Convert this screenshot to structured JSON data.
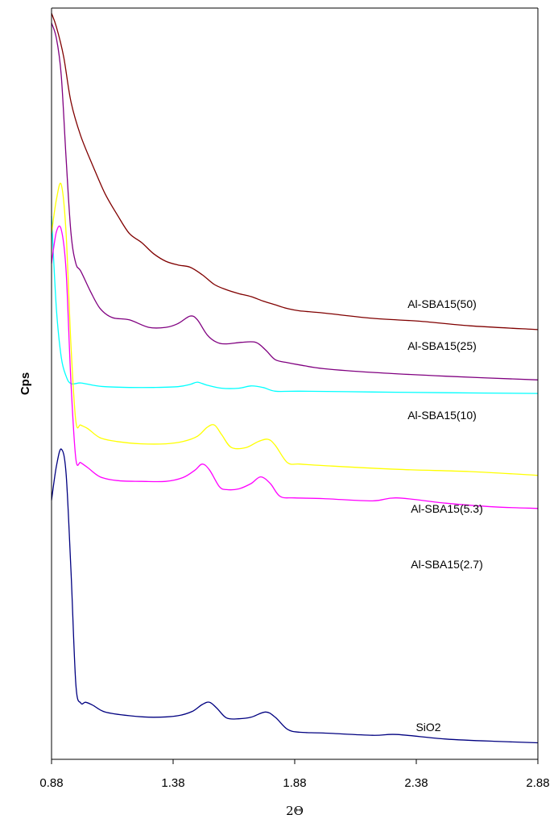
{
  "chart_data": {
    "type": "line",
    "xlabel": "2Θ",
    "ylabel": "Cps",
    "xlim": [
      0.88,
      2.88
    ],
    "xticks": [
      "0.88",
      "1.38",
      "1.88",
      "2.38",
      "2.88"
    ],
    "ylim": [
      0,
      100
    ],
    "grid": false,
    "legend": "inline labels at right",
    "series": [
      {
        "name": "Al-SBA15(50)",
        "color": "#800000",
        "points": [
          [
            0.88,
            99.3
          ],
          [
            0.9,
            97.5
          ],
          [
            0.93,
            93.5
          ],
          [
            0.96,
            87.5
          ],
          [
            1.0,
            83
          ],
          [
            1.05,
            79
          ],
          [
            1.1,
            75.3
          ],
          [
            1.15,
            72.5
          ],
          [
            1.2,
            70
          ],
          [
            1.25,
            68.8
          ],
          [
            1.3,
            67.3
          ],
          [
            1.35,
            66.3
          ],
          [
            1.4,
            65.8
          ],
          [
            1.45,
            65.5
          ],
          [
            1.5,
            64.5
          ],
          [
            1.55,
            63.2
          ],
          [
            1.6,
            62.5
          ],
          [
            1.65,
            62
          ],
          [
            1.7,
            61.6
          ],
          [
            1.75,
            61
          ],
          [
            1.8,
            60.5
          ],
          [
            1.85,
            60
          ],
          [
            1.9,
            59.7
          ],
          [
            2.0,
            59.4
          ],
          [
            2.2,
            58.7
          ],
          [
            2.4,
            58.3
          ],
          [
            2.6,
            57.7
          ],
          [
            2.88,
            57.2
          ]
        ]
      },
      {
        "name": "Al-SBA15(25)",
        "color": "#800080",
        "points": [
          [
            0.88,
            98
          ],
          [
            0.9,
            96
          ],
          [
            0.92,
            91
          ],
          [
            0.94,
            80
          ],
          [
            0.96,
            70
          ],
          [
            0.98,
            66
          ],
          [
            1.0,
            65
          ],
          [
            1.04,
            62.3
          ],
          [
            1.08,
            60
          ],
          [
            1.13,
            58.8
          ],
          [
            1.2,
            58.5
          ],
          [
            1.28,
            57.5
          ],
          [
            1.35,
            57.5
          ],
          [
            1.4,
            58
          ],
          [
            1.45,
            59
          ],
          [
            1.48,
            58.5
          ],
          [
            1.52,
            56.5
          ],
          [
            1.56,
            55.5
          ],
          [
            1.6,
            55.3
          ],
          [
            1.66,
            55.5
          ],
          [
            1.72,
            55.5
          ],
          [
            1.76,
            54.5
          ],
          [
            1.8,
            53.2
          ],
          [
            1.85,
            52.8
          ],
          [
            1.9,
            52.5
          ],
          [
            2.0,
            52
          ],
          [
            2.2,
            51.5
          ],
          [
            2.5,
            51
          ],
          [
            2.88,
            50.5
          ]
        ]
      },
      {
        "name": "Al-SBA15(10)",
        "color": "#00ffff",
        "points": [
          [
            0.88,
            72.3
          ],
          [
            0.9,
            60
          ],
          [
            0.92,
            53.5
          ],
          [
            0.94,
            51
          ],
          [
            0.96,
            50
          ],
          [
            1.0,
            50.1
          ],
          [
            1.05,
            49.8
          ],
          [
            1.1,
            49.6
          ],
          [
            1.2,
            49.5
          ],
          [
            1.3,
            49.5
          ],
          [
            1.4,
            49.6
          ],
          [
            1.45,
            49.9
          ],
          [
            1.48,
            50.2
          ],
          [
            1.52,
            49.8
          ],
          [
            1.58,
            49.4
          ],
          [
            1.65,
            49.4
          ],
          [
            1.7,
            49.7
          ],
          [
            1.75,
            49.5
          ],
          [
            1.8,
            49
          ],
          [
            1.9,
            49
          ],
          [
            2.2,
            48.9
          ],
          [
            2.5,
            48.8
          ],
          [
            2.88,
            48.7
          ]
        ]
      },
      {
        "name": "Al-SBA15(5.3)",
        "color": "#ffff00",
        "points": [
          [
            0.88,
            70
          ],
          [
            0.9,
            74.5
          ],
          [
            0.92,
            76.5
          ],
          [
            0.94,
            70
          ],
          [
            0.96,
            55
          ],
          [
            0.98,
            45
          ],
          [
            1.0,
            44.5
          ],
          [
            1.03,
            44
          ],
          [
            1.08,
            42.8
          ],
          [
            1.15,
            42.3
          ],
          [
            1.25,
            42
          ],
          [
            1.35,
            42
          ],
          [
            1.42,
            42.3
          ],
          [
            1.48,
            43
          ],
          [
            1.52,
            44.2
          ],
          [
            1.55,
            44.5
          ],
          [
            1.58,
            43.2
          ],
          [
            1.62,
            41.5
          ],
          [
            1.68,
            41.5
          ],
          [
            1.73,
            42.3
          ],
          [
            1.77,
            42.6
          ],
          [
            1.8,
            41.8
          ],
          [
            1.85,
            39.5
          ],
          [
            1.9,
            39.3
          ],
          [
            2.0,
            39.1
          ],
          [
            2.3,
            38.6
          ],
          [
            2.6,
            38.3
          ],
          [
            2.88,
            37.8
          ]
        ]
      },
      {
        "name": "Al-SBA15(2.7)",
        "color": "#ff00ff",
        "points": [
          [
            0.88,
            66
          ],
          [
            0.9,
            70.2
          ],
          [
            0.92,
            70.5
          ],
          [
            0.94,
            65
          ],
          [
            0.96,
            50
          ],
          [
            0.98,
            40
          ],
          [
            1.0,
            39.5
          ],
          [
            1.03,
            38.8
          ],
          [
            1.08,
            37.6
          ],
          [
            1.15,
            37.1
          ],
          [
            1.25,
            37
          ],
          [
            1.35,
            37
          ],
          [
            1.42,
            37.5
          ],
          [
            1.47,
            38.5
          ],
          [
            1.5,
            39.3
          ],
          [
            1.53,
            38.5
          ],
          [
            1.57,
            36.3
          ],
          [
            1.6,
            35.9
          ],
          [
            1.65,
            36
          ],
          [
            1.7,
            36.7
          ],
          [
            1.74,
            37.6
          ],
          [
            1.78,
            36.7
          ],
          [
            1.82,
            35
          ],
          [
            1.88,
            34.8
          ],
          [
            2.0,
            34.7
          ],
          [
            2.2,
            34.4
          ],
          [
            2.3,
            34.8
          ],
          [
            2.5,
            34.1
          ],
          [
            2.7,
            33.6
          ],
          [
            2.88,
            33.4
          ]
        ]
      },
      {
        "name": "SiO2",
        "color": "#000080",
        "points": [
          [
            0.88,
            34.5
          ],
          [
            0.9,
            39
          ],
          [
            0.92,
            41.3
          ],
          [
            0.94,
            38
          ],
          [
            0.96,
            25
          ],
          [
            0.98,
            10
          ],
          [
            1.0,
            7.5
          ],
          [
            1.02,
            7.6
          ],
          [
            1.05,
            7.2
          ],
          [
            1.1,
            6.3
          ],
          [
            1.2,
            5.8
          ],
          [
            1.3,
            5.6
          ],
          [
            1.4,
            5.8
          ],
          [
            1.46,
            6.4
          ],
          [
            1.5,
            7.3
          ],
          [
            1.53,
            7.6
          ],
          [
            1.56,
            6.8
          ],
          [
            1.6,
            5.5
          ],
          [
            1.65,
            5.4
          ],
          [
            1.7,
            5.6
          ],
          [
            1.76,
            6.3
          ],
          [
            1.8,
            5.6
          ],
          [
            1.85,
            4
          ],
          [
            1.9,
            3.6
          ],
          [
            2.0,
            3.5
          ],
          [
            2.2,
            3.2
          ],
          [
            2.3,
            3.3
          ],
          [
            2.5,
            2.7
          ],
          [
            2.7,
            2.4
          ],
          [
            2.88,
            2.2
          ]
        ]
      }
    ]
  }
}
